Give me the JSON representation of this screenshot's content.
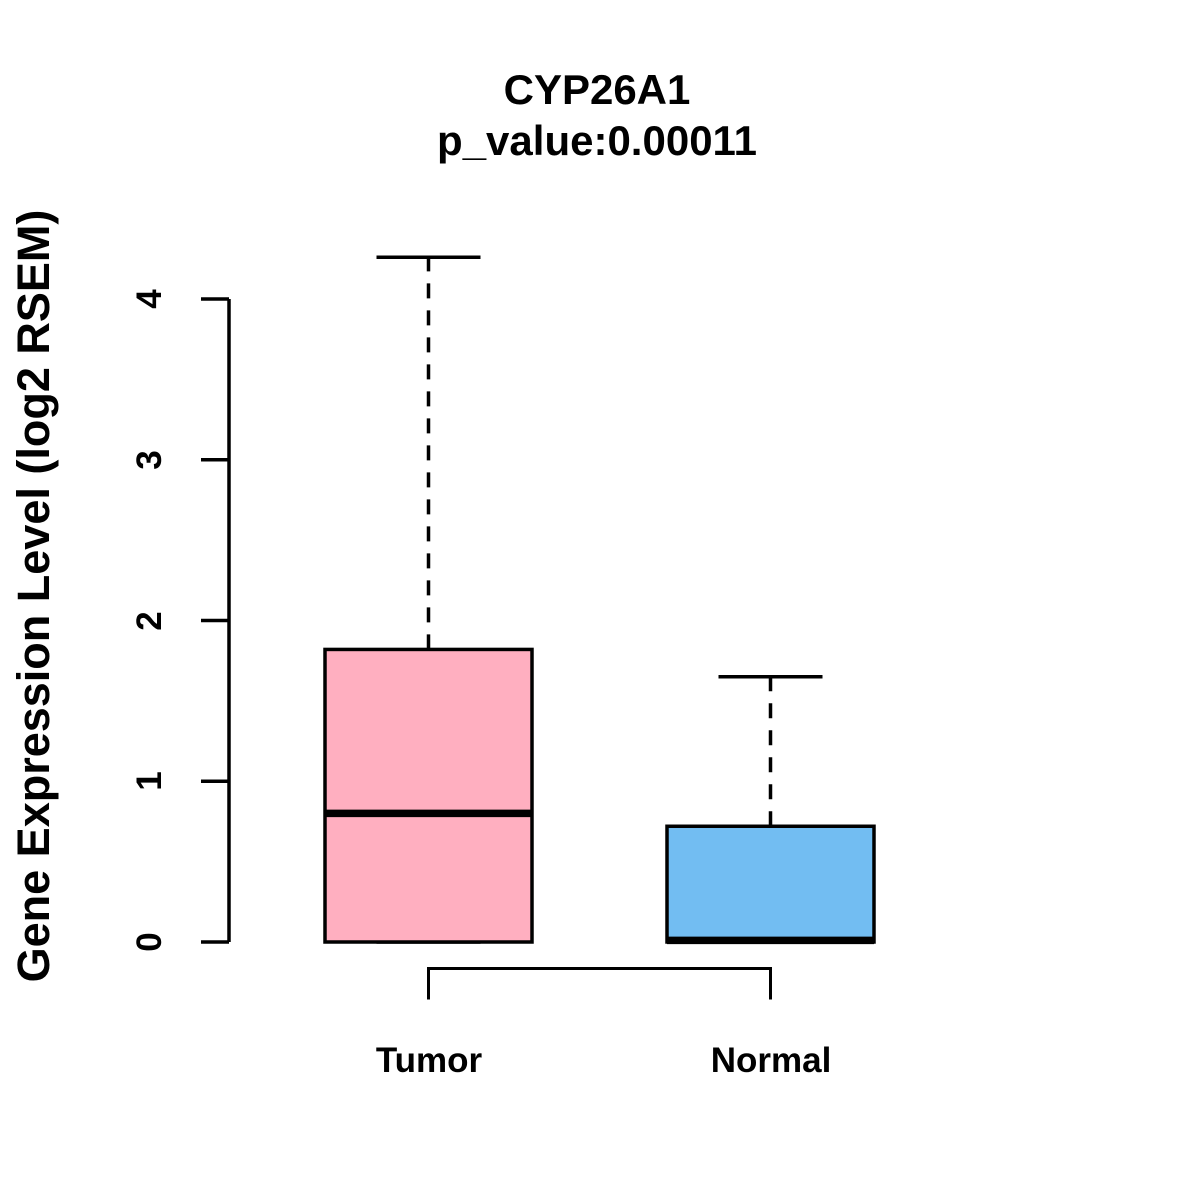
{
  "chart_data": {
    "type": "boxplot",
    "title": "CYP26A1",
    "subtitle": "p_value:0.00011",
    "ylabel": "Gene Expression Level (log2 RSEM)",
    "xlabel": "",
    "categories": [
      "Tumor",
      "Normal"
    ],
    "yticks": [
      "0",
      "1",
      "2",
      "3",
      "4"
    ],
    "ylim": [
      0,
      4.35
    ],
    "grid": false,
    "legend_position": "none",
    "axis_color": "#000000",
    "box_edge_color": "#000000",
    "series": [
      {
        "name": "Tumor",
        "color": "#ffafc0",
        "whisker_low": 0,
        "q1": 0,
        "median": 0.8,
        "q3": 1.82,
        "whisker_high": 4.26,
        "outliers": []
      },
      {
        "name": "Normal",
        "color": "#72bdf2",
        "whisker_low": 0,
        "q1": 0,
        "median": 0.01,
        "q3": 0.72,
        "whisker_high": 1.65,
        "outliers": []
      }
    ],
    "significance_bracket": {
      "connects": [
        "Tumor",
        "Normal"
      ]
    }
  }
}
